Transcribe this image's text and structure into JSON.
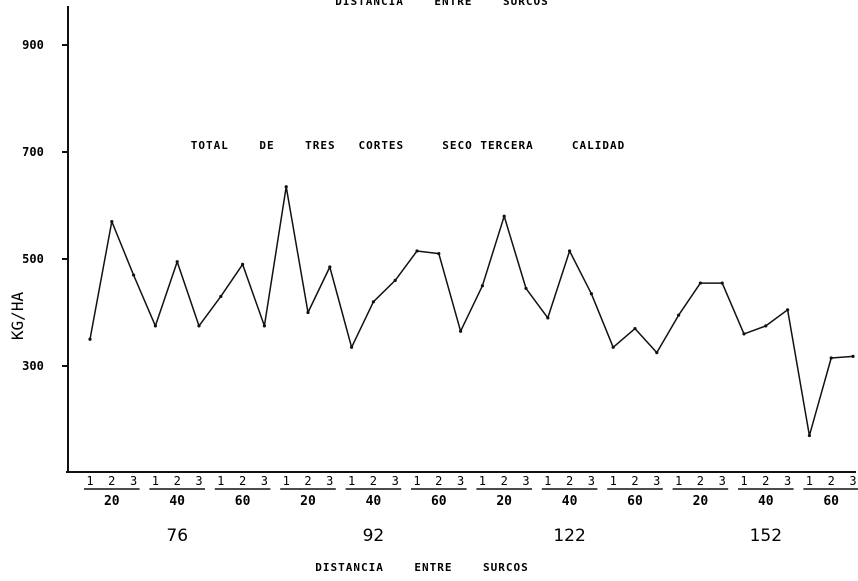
{
  "chart_data": {
    "type": "line",
    "title_top": "DISTANCIA    ENTRE    SURCOS",
    "title": "TOTAL    DE    TRES   CORTES     SECO TERCERA     CALIDAD",
    "ylabel": "KG/HA",
    "xlabel": "DISTANCIA    ENTRE    SURCOS",
    "ylim": [
      160,
      980
    ],
    "yticks": [
      300,
      500,
      700,
      900
    ],
    "ytick_labels": [
      "300",
      "500",
      "700",
      "900"
    ],
    "grid": false,
    "cut_labels": [
      "1",
      "2",
      "3"
    ],
    "surcos": [
      {
        "label": "76",
        "groups": [
          {
            "label": "20",
            "values": [
              350,
              570,
              470
            ]
          },
          {
            "label": "40",
            "values": [
              375,
              495,
              375
            ]
          },
          {
            "label": "60",
            "values": [
              430,
              490,
              375
            ]
          }
        ]
      },
      {
        "label": "92",
        "groups": [
          {
            "label": "20",
            "values": [
              635,
              400,
              485
            ]
          },
          {
            "label": "40",
            "values": [
              335,
              420,
              460
            ]
          },
          {
            "label": "60",
            "values": [
              515,
              510,
              365
            ]
          }
        ]
      },
      {
        "label": "122",
        "groups": [
          {
            "label": "20",
            "values": [
              450,
              580,
              445
            ]
          },
          {
            "label": "40",
            "values": [
              390,
              515,
              435
            ]
          },
          {
            "label": "60",
            "values": [
              335,
              370,
              325
            ]
          }
        ]
      },
      {
        "label": "152",
        "groups": [
          {
            "label": "20",
            "values": [
              395,
              455,
              455
            ]
          },
          {
            "label": "40",
            "values": [
              360,
              375,
              405
            ]
          },
          {
            "label": "60",
            "values": [
              170,
              315,
              318
            ]
          }
        ]
      }
    ]
  }
}
